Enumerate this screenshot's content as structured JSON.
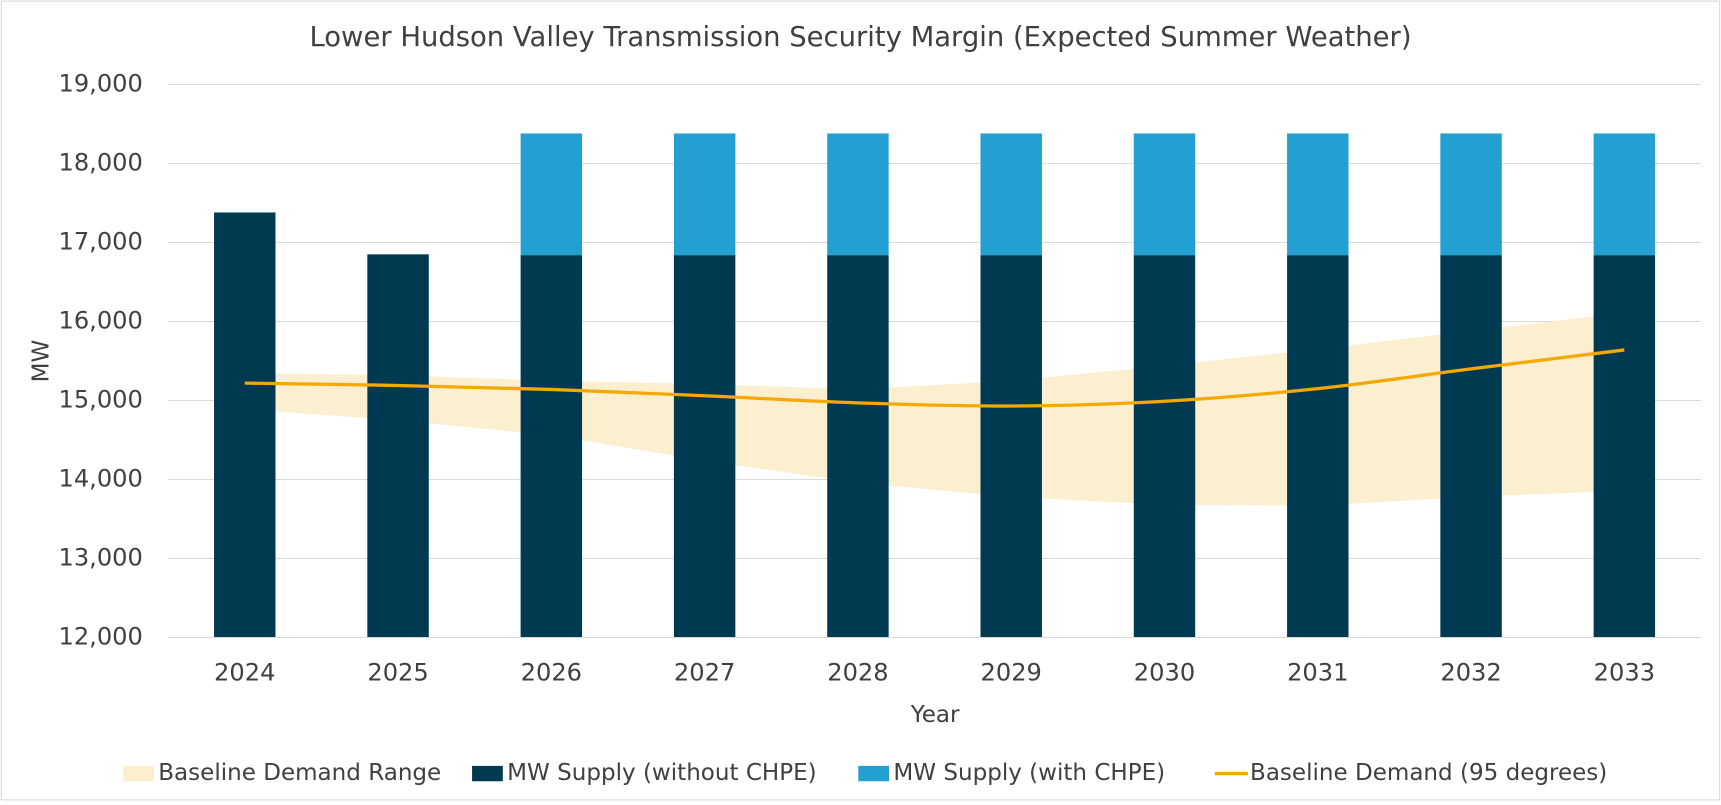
{
  "chart_data": {
    "type": "bar",
    "title": "Lower Hudson Valley Transmission Security Margin (Expected Summer Weather)",
    "x_label": "Year",
    "y_label": "MW",
    "categories": [
      "2024",
      "2025",
      "2026",
      "2027",
      "2028",
      "2029",
      "2030",
      "2031",
      "2032",
      "2033"
    ],
    "series": [
      {
        "name": "Baseline Demand Range",
        "color": "#fbefd0",
        "type": "range",
        "low": [
          14890,
          14750,
          14560,
          14240,
          13960,
          13780,
          13680,
          13670,
          13780,
          13860
        ],
        "high": [
          15350,
          15320,
          15250,
          15210,
          15140,
          15250,
          15440,
          15650,
          15880,
          16110
        ]
      },
      {
        "name": "MW Supply (without CHPE)",
        "color": "#003a52",
        "type": "bar",
        "values": [
          17380,
          16850,
          16840,
          16840,
          16840,
          16840,
          16840,
          16840,
          16840,
          16840
        ]
      },
      {
        "name": "MW Supply (with CHPE)",
        "color": "#239fd2",
        "type": "bar",
        "values": [
          null,
          null,
          1540,
          1540,
          1540,
          1540,
          1540,
          1540,
          1540,
          1540
        ]
      },
      {
        "name": "Baseline Demand (95 degrees)",
        "color": "#f5a800",
        "type": "line",
        "values": [
          15220,
          15190,
          15140,
          15060,
          14970,
          14930,
          14990,
          15150,
          15400,
          15640
        ]
      }
    ],
    "ylim": [
      12000,
      19000
    ],
    "yticks": [
      {
        "value": 12000,
        "label": "12,000"
      },
      {
        "value": 13000,
        "label": "13,000"
      },
      {
        "value": 14000,
        "label": "14,000"
      },
      {
        "value": 15000,
        "label": "15,000"
      },
      {
        "value": 16000,
        "label": "16,000"
      },
      {
        "value": 17000,
        "label": "17,000"
      },
      {
        "value": 18000,
        "label": "18,000"
      },
      {
        "value": 19000,
        "label": "19,000"
      }
    ],
    "grid": true,
    "legend": "bottom"
  }
}
